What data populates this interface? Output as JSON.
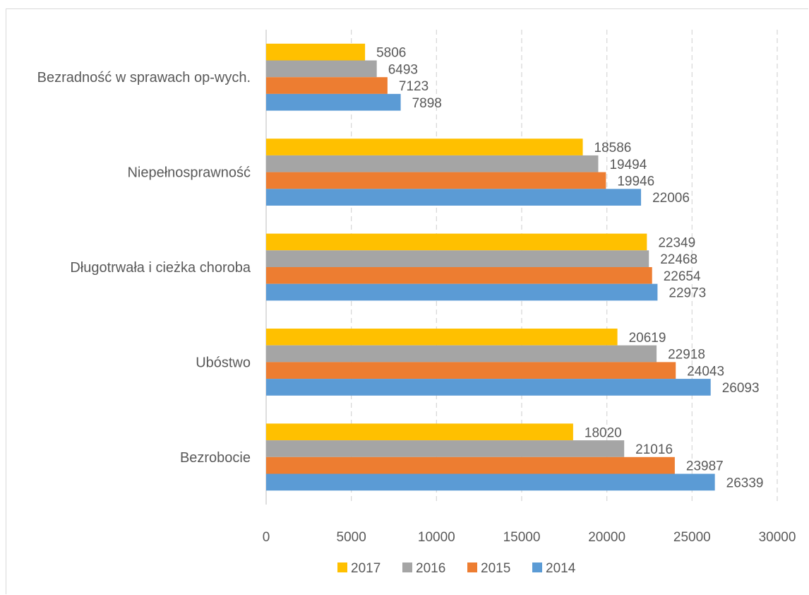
{
  "chart_data": {
    "type": "bar",
    "orientation": "horizontal",
    "title": "",
    "xlabel": "",
    "ylabel": "",
    "categories": [
      "Bezrobocie",
      "Ubóstwo",
      "Długotrwała i cieżka choroba",
      "Niepełnosprawność",
      "Bezradność w sprawach op-wych."
    ],
    "series": [
      {
        "name": "2017",
        "color": "#ffc000",
        "values": [
          18020,
          20619,
          22349,
          18586,
          5806
        ]
      },
      {
        "name": "2016",
        "color": "#a5a5a5",
        "values": [
          21016,
          22918,
          22468,
          19494,
          6493
        ]
      },
      {
        "name": "2015",
        "color": "#ed7d31",
        "values": [
          23987,
          24043,
          22654,
          19946,
          7123
        ]
      },
      {
        "name": "2014",
        "color": "#5b9bd5",
        "values": [
          26339,
          26093,
          22973,
          22006,
          7898
        ]
      }
    ],
    "xlim": [
      0,
      30000
    ],
    "x_ticks": [
      "0",
      "5000",
      "10000",
      "15000",
      "20000",
      "25000",
      "30000"
    ],
    "x_tick_values": [
      0,
      5000,
      10000,
      15000,
      20000,
      25000,
      30000
    ],
    "grid": "vertical-dashed",
    "data_labels": true,
    "legend": {
      "position": "bottom",
      "order": [
        "2017",
        "2016",
        "2015",
        "2014"
      ]
    }
  }
}
